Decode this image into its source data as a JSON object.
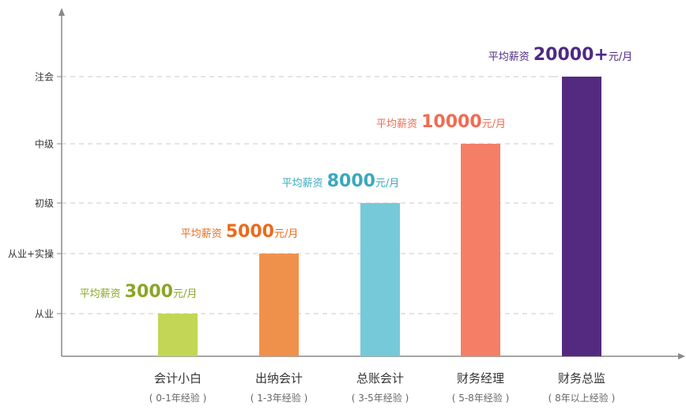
{
  "chart_data": {
    "type": "bar",
    "title": "",
    "xlabel": "",
    "ylabel": "",
    "y_levels": [
      "从业",
      "从业+实操",
      "初级",
      "中级",
      "注会"
    ],
    "categories": [
      "会计小白",
      "出纳会计",
      "总账会计",
      "财务经理",
      "财务总监"
    ],
    "subcategories": [
      "( 0-1年经验 )",
      "( 1-3年经验 )",
      "( 3-5年经验 )",
      "( 5-8年经验 )",
      "( 8年以上经验 )"
    ],
    "values": [
      "从业",
      "从业+实操",
      "初级",
      "中级",
      "注会"
    ],
    "annotations": [
      {
        "prefix": "平均薪资",
        "salary": "3000",
        "unit": "元/月"
      },
      {
        "prefix": "平均薪资",
        "salary": "5000",
        "unit": "元/月"
      },
      {
        "prefix": "平均薪资",
        "salary": "8000",
        "unit": "元/月"
      },
      {
        "prefix": "平均薪资",
        "salary": "10000",
        "unit": "元/月"
      },
      {
        "prefix": "平均薪资",
        "salary": "20000+",
        "unit": "元/月"
      }
    ],
    "bar_colors": [
      "#c3d655",
      "#f0914b",
      "#76c9d9",
      "#f47f66",
      "#532a80"
    ],
    "label_colors": [
      "#8aa626",
      "#ec6a1a",
      "#3aa8bd",
      "#f26a50",
      "#4e2a82"
    ],
    "grid": "dashed horizontal at levels"
  }
}
